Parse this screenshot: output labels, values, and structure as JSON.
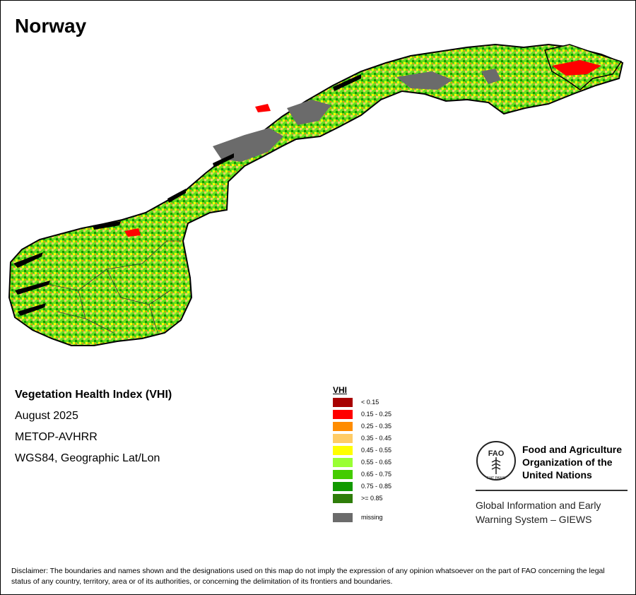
{
  "map": {
    "title": "Norway",
    "info": {
      "index_name": "Vegetation Health Index (VHI)",
      "date": "August 2025",
      "sensor": "METOP-AVHRR",
      "projection": "WGS84, Geographic Lat/Lon"
    },
    "legend": {
      "title": "VHI",
      "classes": [
        {
          "label": "< 0.15",
          "color": "#a80000"
        },
        {
          "label": "0.15 - 0.25",
          "color": "#ff0000"
        },
        {
          "label": "0.25 - 0.35",
          "color": "#ff8c00"
        },
        {
          "label": "0.35 - 0.45",
          "color": "#ffcc66"
        },
        {
          "label": "0.45 - 0.55",
          "color": "#ffff00"
        },
        {
          "label": "0.55 - 0.65",
          "color": "#99ff33"
        },
        {
          "label": "0.65 - 0.75",
          "color": "#44cc00"
        },
        {
          "label": "0.75 - 0.85",
          "color": "#119900"
        },
        {
          "label": ">= 0.85",
          "color": "#2e7d0a"
        }
      ],
      "missing": {
        "label": "missing",
        "color": "#6b6b6b"
      }
    },
    "organization": {
      "name_line1": "Food and Agriculture",
      "name_line2": "Organization of the",
      "name_line3": "United Nations",
      "program_line1": "Global Information and Early",
      "program_line2": "Warning System – GIEWS",
      "emblem_text": "FAO",
      "emblem_motto": "FIAT PANIS"
    },
    "disclaimer": "Disclaimer: The boundaries and names shown and the designations used on this map do not imply the expression of any opinion whatsoever on the part of FAO concerning the legal status of any country, territory, area or of its authorities, or concerning the delimitation of its frontiers and boundaries."
  }
}
